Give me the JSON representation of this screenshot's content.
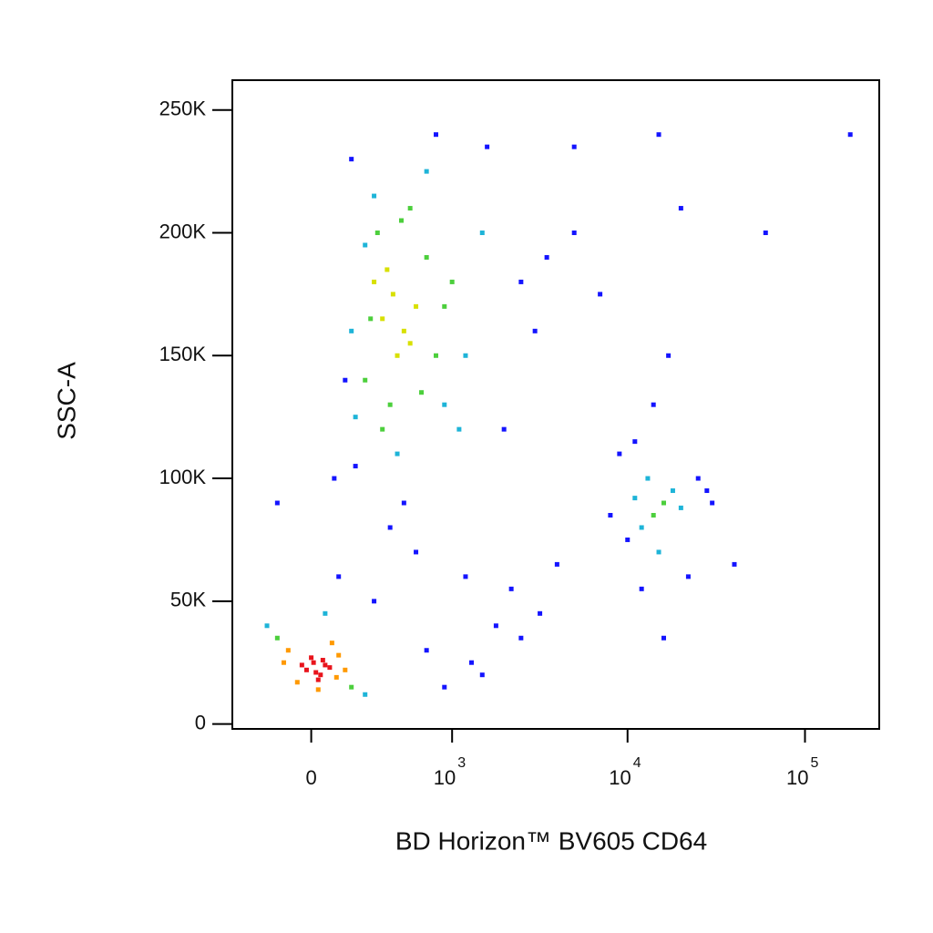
{
  "chart_data": {
    "type": "scatter",
    "x_label": "BD Horizon™ BV605 CD64",
    "y_label": "SSC-A",
    "xscale": "biexponential",
    "xscale_width": 330,
    "xlim": [
      -400,
      262144
    ],
    "ylim": [
      -2000,
      262144
    ],
    "xticks": [
      0,
      {
        "value": 1000,
        "label": "10",
        "exponent": "3"
      },
      {
        "value": 10000,
        "label": "10",
        "exponent": "4"
      },
      {
        "value": 100000,
        "label": "10",
        "exponent": "5"
      }
    ],
    "yticks": [
      0,
      {
        "value": 50000,
        "label": "50K"
      },
      {
        "value": 100000,
        "label": "100K"
      },
      {
        "value": 150000,
        "label": "150K"
      },
      {
        "value": 200000,
        "label": "200K"
      },
      {
        "value": 250000,
        "label": "250K"
      }
    ],
    "series": [
      {
        "color": "#1414ff",
        "x": [
          150,
          2500,
          3000,
          180,
          1600,
          2000,
          800,
          3500,
          5000,
          100,
          600,
          1200,
          2200,
          400,
          1800,
          4000,
          700,
          10000,
          25000,
          22000,
          9000,
          14000,
          17000,
          30000,
          12000,
          40000,
          60000,
          180000,
          15000,
          20000,
          8000,
          1500,
          500,
          300,
          2500,
          3200,
          120,
          200,
          -150,
          900,
          1300,
          5000,
          7000,
          16000,
          28000,
          11000
        ],
        "y": [
          140000,
          180000,
          160000,
          230000,
          235000,
          120000,
          240000,
          190000,
          200000,
          100000,
          70000,
          60000,
          55000,
          80000,
          40000,
          65000,
          30000,
          75000,
          100000,
          60000,
          110000,
          130000,
          150000,
          90000,
          55000,
          65000,
          200000,
          240000,
          240000,
          210000,
          85000,
          20000,
          90000,
          50000,
          35000,
          45000,
          60000,
          105000,
          90000,
          15000,
          25000,
          235000,
          175000,
          35000,
          95000,
          115000
        ]
      },
      {
        "color": "#1eb4d8",
        "x": [
          200,
          1200,
          1500,
          300,
          1100,
          700,
          180,
          900,
          450,
          250,
          12000,
          18000,
          15000,
          13000,
          20000,
          11000,
          -200,
          250,
          60
        ],
        "y": [
          125000,
          150000,
          200000,
          215000,
          120000,
          225000,
          160000,
          130000,
          110000,
          195000,
          80000,
          95000,
          70000,
          100000,
          88000,
          92000,
          40000,
          12000,
          45000
        ]
      },
      {
        "color": "#4ccf3c",
        "x": [
          250,
          700,
          900,
          320,
          480,
          800,
          650,
          280,
          1000,
          400,
          550,
          350,
          14000,
          16000,
          -150,
          180
        ],
        "y": [
          140000,
          190000,
          170000,
          200000,
          205000,
          150000,
          135000,
          165000,
          180000,
          130000,
          210000,
          120000,
          85000,
          90000,
          35000,
          15000
        ]
      },
      {
        "color": "#d8e000",
        "x": [
          350,
          420,
          500,
          380,
          450,
          600,
          300,
          550
        ],
        "y": [
          165000,
          175000,
          160000,
          185000,
          150000,
          170000,
          180000,
          155000
        ]
      },
      {
        "color": "#ff9900",
        "x": [
          -100,
          120,
          -60,
          150,
          90,
          -120,
          30,
          110
        ],
        "y": [
          30000,
          28000,
          17000,
          22000,
          33000,
          25000,
          14000,
          19000
        ]
      },
      {
        "color": "#e8141c",
        "x": [
          -20,
          10,
          40,
          60,
          0,
          30,
          80,
          -40,
          20,
          50
        ],
        "y": [
          22000,
          25000,
          20000,
          24000,
          27000,
          18000,
          23000,
          24000,
          21000,
          26000
        ]
      }
    ]
  }
}
